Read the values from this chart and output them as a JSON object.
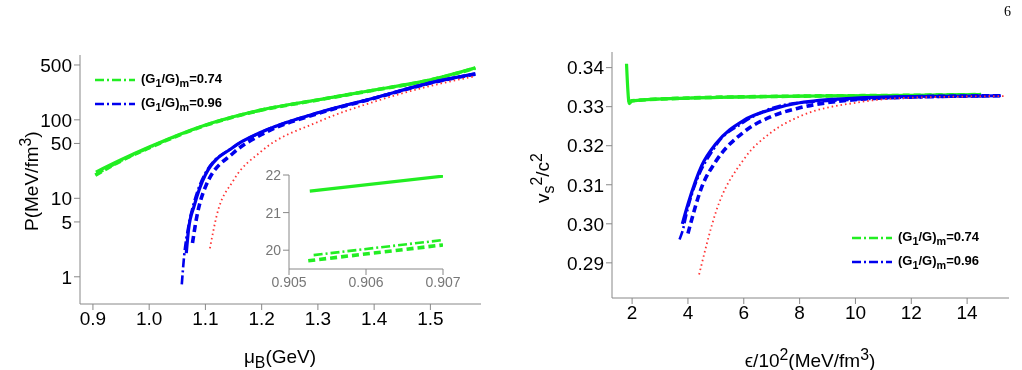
{
  "chart_data": [
    {
      "type": "line",
      "xlabel": "μ$_{B}$(GeV)",
      "ylabel": "P(MeV/fm$^{3}$)",
      "log": "y",
      "legend": "top left",
      "xlim": [
        0.877,
        1.59
      ],
      "xticks": [
        0.9,
        {
          "value": 1.0,
          "label": "1.0"
        },
        1.1,
        1.2,
        1.3,
        1.4,
        1.5
      ],
      "ylim": [
        0.45,
        670
      ],
      "yticks": [
        1,
        5,
        10,
        50,
        100,
        500
      ],
      "series": [
        {
          "color": "#22ee22",
          "line_style": "solid",
          "x": [
            0.9053,
            0.95,
            1.0,
            1.1,
            1.2,
            1.3,
            1.4,
            1.5,
            1.58
          ],
          "values": [
            21.6,
            31,
            45,
            86,
            134,
            180,
            240,
            323,
            460
          ]
        },
        {
          "color": "#22ee22",
          "line_style": "dashed",
          "x": [
            0.9043,
            0.95,
            1.0,
            1.1,
            1.2,
            1.3,
            1.4,
            1.5,
            1.58
          ],
          "values": [
            19.7,
            30,
            44,
            85,
            133,
            179,
            239,
            322,
            455
          ]
        },
        {
          "name": "(G$_{1}$/G)$_{m}$=0.74",
          "color": "#22ee22",
          "line_style": "dashdot",
          "x": [
            0.9045,
            0.95,
            1.0,
            1.1,
            1.2,
            1.3,
            1.4,
            1.5,
            1.58
          ],
          "values": [
            19.9,
            30,
            44,
            85,
            133,
            179,
            239,
            322,
            455
          ]
        },
        {
          "color": "#0000ee",
          "line_style": "solid",
          "x": [
            1.066,
            1.07,
            1.08,
            1.1,
            1.15,
            1.2,
            1.3,
            1.4,
            1.5,
            1.58
          ],
          "values": [
            2.0,
            4,
            8,
            20,
            45,
            70,
            123,
            190,
            296,
            385
          ]
        },
        {
          "color": "#0000ee",
          "line_style": "dashed",
          "x": [
            1.077,
            1.085,
            1.1,
            1.15,
            1.2,
            1.3,
            1.4,
            1.5,
            1.58
          ],
          "values": [
            2.7,
            6,
            14,
            38,
            65,
            120,
            188,
            294,
            383
          ]
        },
        {
          "name": "(G$_{1}$/G)$_{m}$=0.96",
          "color": "#0000ee",
          "line_style": "dashdot",
          "x": [
            1.058,
            1.062,
            1.07,
            1.08,
            1.1,
            1.15,
            1.2,
            1.3,
            1.4,
            1.5,
            1.58
          ],
          "values": [
            0.8,
            1.8,
            4.5,
            9,
            21,
            45,
            70,
            123,
            190,
            296,
            385
          ]
        },
        {
          "color": "#ff3333",
          "line_style": "dotted",
          "x": [
            1.108,
            1.12,
            1.15,
            1.2,
            1.3,
            1.4,
            1.5,
            1.58
          ],
          "values": [
            2.3,
            6,
            17,
            40,
            94,
            170,
            270,
            360
          ]
        }
      ]
    },
    {
      "type": "line",
      "xlim": [
        0.905,
        0.907
      ],
      "xticks": [
        0.905,
        0.906,
        0.907
      ],
      "ylim": [
        19.5,
        22
      ],
      "yticks": [
        20,
        21,
        22
      ],
      "series": [
        {
          "color": "#22ee22",
          "line_style": "solid",
          "x": [
            0.90527,
            0.907
          ],
          "values": [
            21.57,
            21.97
          ]
        },
        {
          "color": "#22ee22",
          "line_style": "dashed",
          "x": [
            0.90525,
            0.907
          ],
          "values": [
            19.72,
            20.14
          ]
        },
        {
          "color": "#22ee22",
          "line_style": "dashdot",
          "x": [
            0.90532,
            0.907
          ],
          "values": [
            19.87,
            20.27
          ]
        }
      ]
    },
    {
      "type": "line",
      "xlabel": "ϵ/10$^{2}$(MeV/fm$^{3}$)",
      "ylabel": "v$_{s}$$^{2}$/c$^{2}$",
      "legend": "bottom right",
      "annotations": [
        "6"
      ],
      "xlim": [
        1.28,
        15.5
      ],
      "xticks": [
        2,
        4,
        6,
        8,
        10,
        12,
        14
      ],
      "ylim": [
        0.281,
        0.344
      ],
      "yticks": [
        {
          "value": 0.29,
          "label": "0.29"
        },
        {
          "value": 0.3,
          "label": "0.30"
        },
        {
          "value": 0.31,
          "label": "0.31"
        },
        {
          "value": 0.32,
          "label": "0.32"
        },
        {
          "value": 0.33,
          "label": "0.33"
        },
        {
          "value": 0.34,
          "label": "0.34"
        }
      ],
      "series": [
        {
          "color": "#22ee22",
          "line_style": "solid",
          "x": [
            1.8,
            1.9,
            2.0,
            4,
            8,
            12,
            14.5
          ],
          "values": [
            0.341,
            0.3308,
            0.3315,
            0.3322,
            0.3327,
            0.3329,
            0.3331
          ]
        },
        {
          "color": "#22ee22",
          "line_style": "dashed",
          "x": [
            1.85,
            2.0,
            4,
            8,
            12,
            14.5
          ],
          "values": [
            0.3312,
            0.3315,
            0.3322,
            0.3327,
            0.3329,
            0.3331
          ]
        },
        {
          "name": "(G$_{1}$/G)$_{m}$=0.74",
          "color": "#22ee22",
          "line_style": "dashdot",
          "x": [
            1.85,
            2.0,
            4,
            8,
            12,
            14.5
          ],
          "values": [
            0.3312,
            0.3315,
            0.3322,
            0.3327,
            0.3329,
            0.3331
          ]
        },
        {
          "color": "#0000ee",
          "line_style": "solid",
          "x": [
            3.8,
            4,
            4.5,
            5,
            6,
            7,
            8,
            10,
            12,
            15.2
          ],
          "values": [
            0.3,
            0.305,
            0.315,
            0.3205,
            0.3265,
            0.3293,
            0.331,
            0.3322,
            0.3326,
            0.3328
          ]
        },
        {
          "color": "#0000ee",
          "line_style": "dashed",
          "x": [
            4.0,
            4.5,
            5,
            6,
            7,
            8,
            10,
            12,
            15.2
          ],
          "values": [
            0.2975,
            0.3095,
            0.316,
            0.3235,
            0.3275,
            0.3297,
            0.3318,
            0.3325,
            0.3328
          ]
        },
        {
          "name": "(G$_{1}$/G)$_{m}$=0.96",
          "color": "#0000ee",
          "line_style": "dashdot",
          "x": [
            3.7,
            3.8,
            4,
            5,
            6,
            8,
            15.2
          ],
          "values": [
            0.296,
            0.298,
            0.304,
            0.32,
            0.326,
            0.331,
            0.3328
          ]
        },
        {
          "color": "#ff3333",
          "line_style": "dotted",
          "x": [
            4.4,
            5,
            6,
            7,
            8,
            10,
            12,
            15.4
          ],
          "values": [
            0.287,
            0.303,
            0.3165,
            0.3235,
            0.3275,
            0.331,
            0.3323,
            0.3327
          ]
        }
      ]
    }
  ]
}
